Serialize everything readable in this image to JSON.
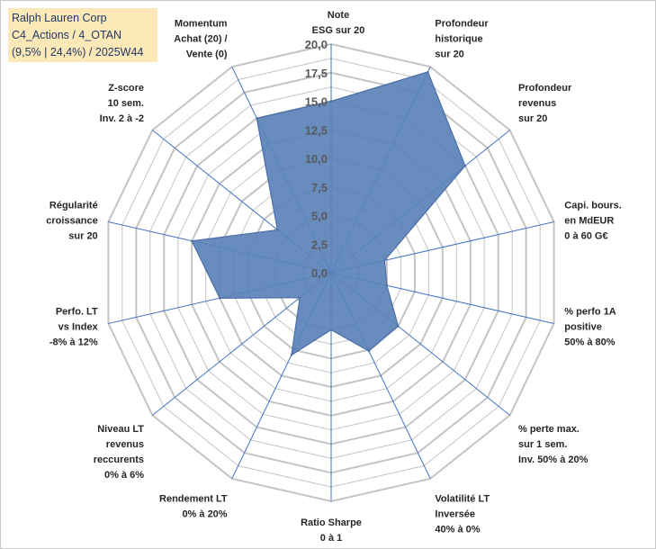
{
  "title": {
    "line1": "Ralph Lauren Corp",
    "line2": "C4_Actions / 4_OTAN",
    "line3": "(9,5% | 24,4%) / 2025W44"
  },
  "chart_data": {
    "type": "radar",
    "r_min": 0,
    "r_max": 20,
    "ticks": [
      "0,0",
      "2,5",
      "5,0",
      "7,5",
      "10,0",
      "12,5",
      "15,0",
      "17,5",
      "20,0"
    ],
    "tick_values": [
      0,
      2.5,
      5,
      7.5,
      10,
      12.5,
      15,
      17.5,
      20
    ],
    "axes": [
      {
        "label": [
          "Note",
          "ESG sur 20"
        ],
        "value": 15.0
      },
      {
        "label": [
          "Profondeur",
          "historique",
          "sur 20"
        ],
        "value": 19.5
      },
      {
        "label": [
          "Profondeur",
          "revenus",
          "sur 20"
        ],
        "value": 15.0
      },
      {
        "label": [
          "Capi. bours.",
          "en MdEUR",
          "0 à 60 G€"
        ],
        "value": 4.8
      },
      {
        "label": [
          "% perfo 1A",
          "positive",
          "50% à 80%"
        ],
        "value": 5.0
      },
      {
        "label": [
          "% perte max.",
          "sur 1 sem.",
          "Inv. 50% à 20%"
        ],
        "value": 7.5
      },
      {
        "label": [
          "Volatilité LT",
          "Inversée",
          "40% à 0%"
        ],
        "value": 7.6
      },
      {
        "label": [
          "Ratio Sharpe",
          "0 à 1"
        ],
        "value": 5.0
      },
      {
        "label": [
          "Rendement LT",
          "0% à 20%"
        ],
        "value": 8.0
      },
      {
        "label": [
          "Niveau LT",
          "revenus",
          "reccurents",
          "0% à 6%"
        ],
        "value": 3.5
      },
      {
        "label": [
          "Perfo. LT",
          "vs Index",
          "-8% à 12%"
        ],
        "value": 10.0
      },
      {
        "label": [
          "Régularité",
          "croissance",
          "sur 20"
        ],
        "value": 12.5
      },
      {
        "label": [
          "Z-score",
          "10 sem.",
          "Inv. 2 à -2"
        ],
        "value": 6.0
      },
      {
        "label": [
          "Momentum",
          "Achat (20) /",
          "Vente (0)"
        ],
        "value": 15.0
      }
    ],
    "colors": {
      "fill": "#5b82b8",
      "stroke": "#4a6fa5",
      "grid": "#c4c4c4",
      "spoke": "#4472c4"
    }
  }
}
